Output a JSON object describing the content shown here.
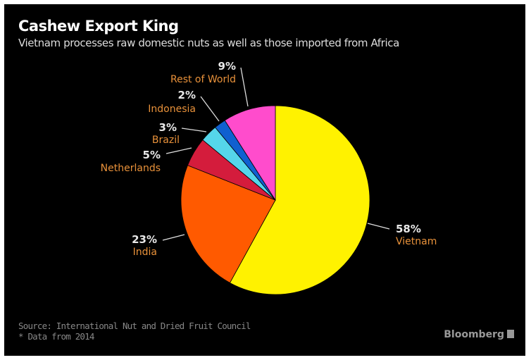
{
  "chart_data": {
    "type": "pie",
    "title": "Cashew Export King",
    "subtitle": "Vietnam processes raw domestic nuts as well as those imported from Africa",
    "start_angle": "12 o'clock, clockwise",
    "slices": [
      {
        "label": "Vietnam",
        "value": 58,
        "value_label": "58%",
        "color": "#fff200"
      },
      {
        "label": "India",
        "value": 23,
        "value_label": "23%",
        "color": "#ff5a00"
      },
      {
        "label": "Netherlands",
        "value": 5,
        "value_label": "5%",
        "color": "#d41c3c"
      },
      {
        "label": "Brazil",
        "value": 3,
        "value_label": "3%",
        "color": "#55d6ea"
      },
      {
        "label": "Indonesia",
        "value": 2,
        "value_label": "2%",
        "color": "#1060d0"
      },
      {
        "label": "Rest of World",
        "value": 9,
        "value_label": "9%",
        "color": "#ff4ccc"
      }
    ],
    "label_color": "#e8913a",
    "background": "#000000"
  },
  "footer": {
    "source": "Source: International Nut and Dried Fruit Council",
    "note": "* Data from 2014",
    "brand": "Bloomberg"
  }
}
